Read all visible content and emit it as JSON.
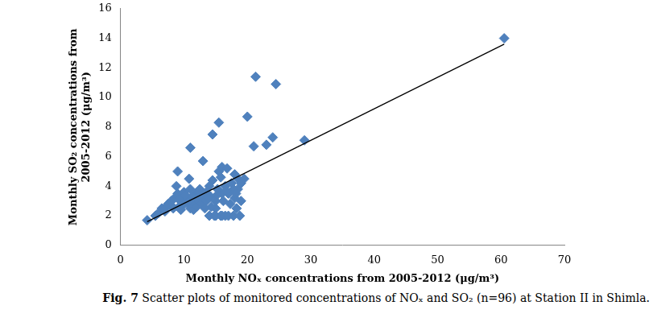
{
  "chart_data": {
    "type": "scatter",
    "x_label": "Monthly NOₓ concentrations from 2005-2012 (μg/m³)",
    "y_label": [
      "Monthly SO₂ concentrations from",
      "2005-2012 (μg/m³)"
    ],
    "caption": {
      "label": "Fig. 7",
      "text": "Scatter plots of monitored concentrations of NOₓ and SO₂ (n=96) at Station II in Shimla."
    },
    "xlim": [
      0,
      70
    ],
    "xticks": [
      0,
      10,
      20,
      30,
      40,
      50,
      60,
      70
    ],
    "ylim": [
      0,
      16
    ],
    "yticks": [
      0,
      2,
      4,
      6,
      8,
      10,
      12,
      14,
      16
    ],
    "grid": false,
    "series": [
      {
        "type": "scatter",
        "color": "#4f81bd",
        "marker": "diamond",
        "x": [
          4.2,
          5.5,
          6,
          6.5,
          7,
          7.5,
          8,
          8,
          8.5,
          8.8,
          9,
          9,
          9.2,
          9.5,
          9.8,
          10,
          10,
          10.3,
          10.5,
          10.8,
          11,
          11,
          11,
          11.2,
          11.5,
          11.5,
          11.8,
          12,
          12,
          12.3,
          12.5,
          12.8,
          13,
          13,
          13.5,
          13.5,
          14,
          14,
          14.2,
          14.5,
          14.5,
          14.8,
          15,
          15,
          15,
          15.3,
          15.5,
          15.5,
          15.8,
          16,
          16,
          16,
          16.5,
          16.5,
          16.8,
          17,
          17,
          17.5,
          17.8,
          18,
          18,
          18.3,
          18.5,
          18.5,
          18.8,
          19,
          19,
          19.5,
          20,
          21,
          21.3,
          23,
          24,
          24.5,
          29,
          60.5,
          12.8,
          9.5,
          10.5,
          13.8,
          16.2,
          17.3,
          8.3,
          7.2,
          6.8,
          11.3,
          12.3,
          14.3,
          15.8,
          17.8,
          10.2,
          9.2,
          13.3,
          18.2,
          15.2,
          16.7
        ],
        "values": [
          1.7,
          2.0,
          2.2,
          2.5,
          2.3,
          2.8,
          3.0,
          2.7,
          3.2,
          4.0,
          5.0,
          3.5,
          2.6,
          3.0,
          3.3,
          2.8,
          3.6,
          3.0,
          3.2,
          4.5,
          2.5,
          3.8,
          6.6,
          2.8,
          3.0,
          2.4,
          3.5,
          3.2,
          2.6,
          3.0,
          3.8,
          2.8,
          5.7,
          3.2,
          3.0,
          3.6,
          4.0,
          2.0,
          3.3,
          4.4,
          7.5,
          2.0,
          3.0,
          2.5,
          2.0,
          3.8,
          5.0,
          8.3,
          2.0,
          5.3,
          3.5,
          2.0,
          4.0,
          2.0,
          5.2,
          3.5,
          2.0,
          4.2,
          2.0,
          4.8,
          3.2,
          2.5,
          4.5,
          3.8,
          2.0,
          3.0,
          4.2,
          4.5,
          8.7,
          6.7,
          11.4,
          6.8,
          7.3,
          10.9,
          7.1,
          14.0,
          3.5,
          2.4,
          2.9,
          3.2,
          3.0,
          2.8,
          2.5,
          2.6,
          2.4,
          3.3,
          3.6,
          2.6,
          4.6,
          3.8,
          3.4,
          3.1,
          2.5,
          3.5,
          3.4,
          3.7
        ]
      },
      {
        "type": "line",
        "color": "#000000",
        "line_style": "solid",
        "x": [
          4.2,
          60.5
        ],
        "values": [
          1.6,
          13.6
        ]
      }
    ]
  }
}
